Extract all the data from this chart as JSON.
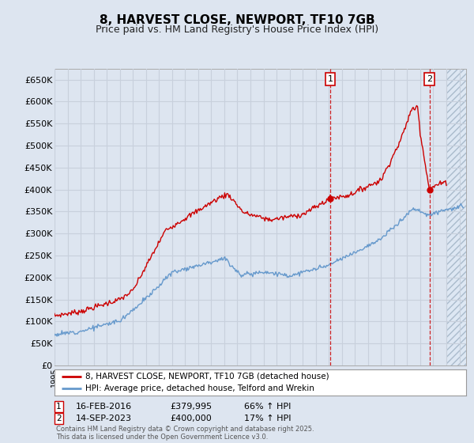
{
  "title": "8, HARVEST CLOSE, NEWPORT, TF10 7GB",
  "subtitle": "Price paid vs. HM Land Registry's House Price Index (HPI)",
  "ylabel_ticks": [
    "£0",
    "£50K",
    "£100K",
    "£150K",
    "£200K",
    "£250K",
    "£300K",
    "£350K",
    "£400K",
    "£450K",
    "£500K",
    "£550K",
    "£600K",
    "£650K"
  ],
  "ytick_values": [
    0,
    50000,
    100000,
    150000,
    200000,
    250000,
    300000,
    350000,
    400000,
    450000,
    500000,
    550000,
    600000,
    650000
  ],
  "ylim": [
    0,
    675000
  ],
  "xlim_start": 1995.0,
  "xlim_end": 2026.5,
  "hpi_color": "#6699cc",
  "price_color": "#cc0000",
  "background_color": "#dde5f0",
  "grid_color": "#c8d0dc",
  "legend_label_price": "8, HARVEST CLOSE, NEWPORT, TF10 7GB (detached house)",
  "legend_label_hpi": "HPI: Average price, detached house, Telford and Wrekin",
  "transaction1_date": 2016.12,
  "transaction1_price": 379995,
  "transaction1_label": "1",
  "transaction1_display": "16-FEB-2016",
  "transaction1_amount": "£379,995",
  "transaction1_hpi": "66% ↑ HPI",
  "transaction2_date": 2023.71,
  "transaction2_price": 400000,
  "transaction2_label": "2",
  "transaction2_display": "14-SEP-2023",
  "transaction2_amount": "£400,000",
  "transaction2_hpi": "17% ↑ HPI",
  "footer_text": "Contains HM Land Registry data © Crown copyright and database right 2025.\nThis data is licensed under the Open Government Licence v3.0.",
  "future_cutoff": 2025.0
}
